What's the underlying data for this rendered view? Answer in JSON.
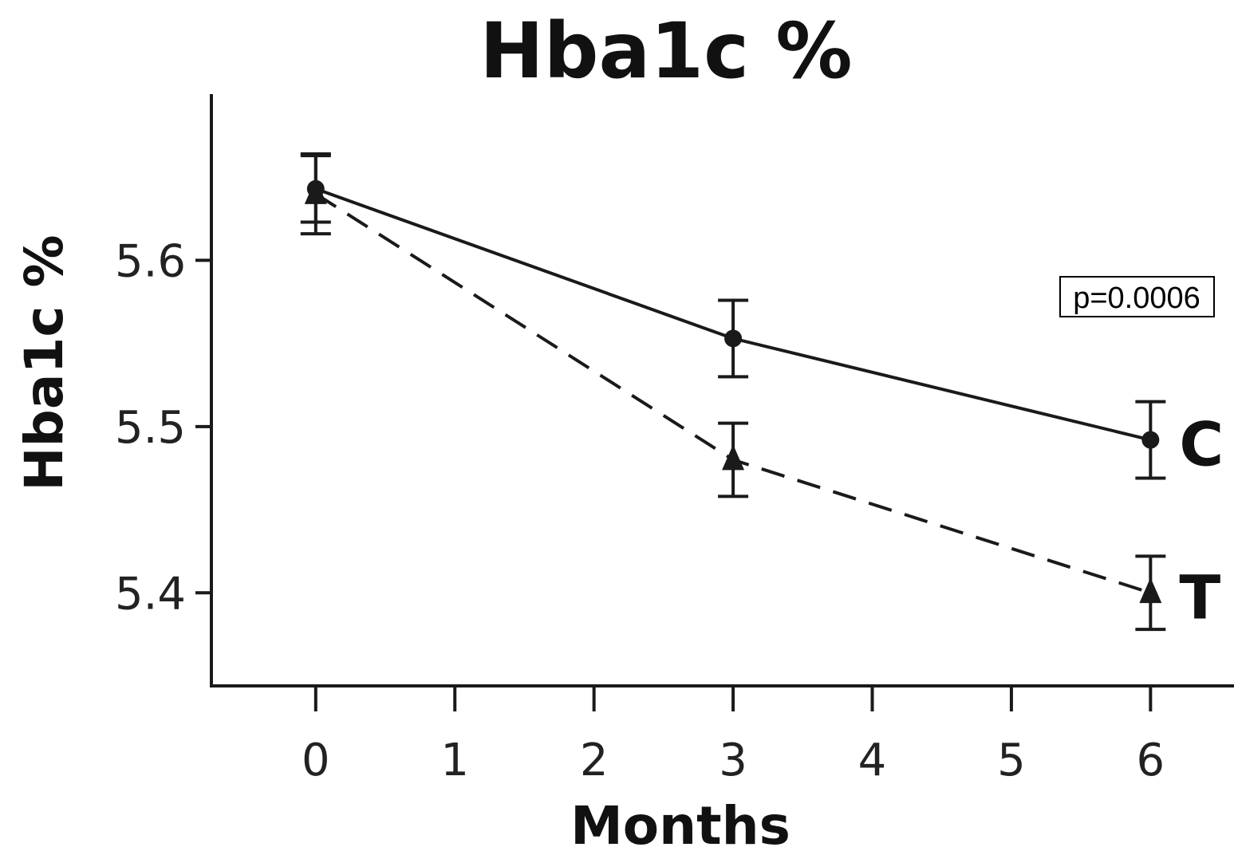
{
  "chart_data": {
    "type": "line",
    "title": "Hba1c %",
    "xlabel": "Months",
    "ylabel": "Hba1c %",
    "x_ticks": [
      "0",
      "1",
      "2",
      "3",
      "4",
      "5",
      "6"
    ],
    "y_ticks": [
      "5.4",
      "5.5",
      "5.6"
    ],
    "xlim": [
      -0.75,
      6.6
    ],
    "ylim": [
      5.344,
      5.7
    ],
    "grid": false,
    "legend": "none (series labelled at line ends)",
    "annotation": "p=0.0006",
    "series": [
      {
        "name": "C",
        "line_style": "solid",
        "marker": "circle",
        "x": [
          0,
          3,
          6
        ],
        "y": [
          5.643,
          5.553,
          5.492
        ],
        "error": [
          0.02,
          0.023,
          0.023
        ]
      },
      {
        "name": "T",
        "line_style": "dashed",
        "marker": "triangle",
        "x": [
          0,
          3,
          6
        ],
        "y": [
          5.64,
          5.48,
          5.4
        ],
        "error": [
          0.024,
          0.022,
          0.022
        ]
      }
    ],
    "colors": {
      "line": "#1a1a1a",
      "text": "#111111"
    }
  }
}
